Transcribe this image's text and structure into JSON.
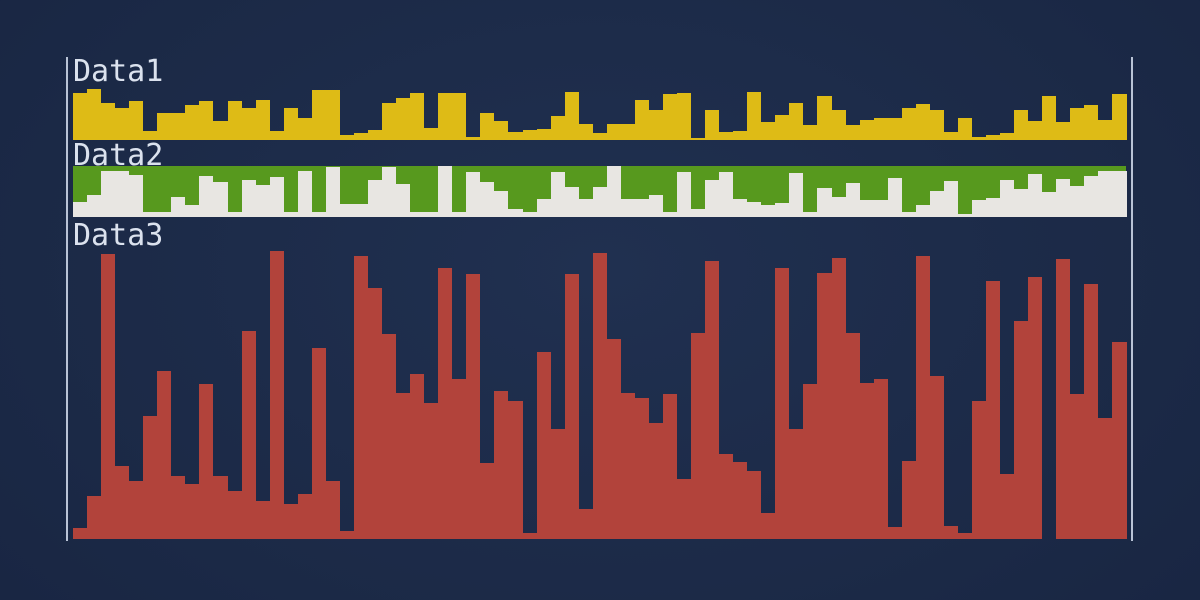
{
  "page": {
    "background_center": "#1b2946",
    "background_edge": "#0e1830",
    "axis_color": "#b9c3d6",
    "label_color": "#dbe2ee"
  },
  "chart_data": [
    {
      "type": "bar",
      "title": "Data1",
      "bar_color": "#debb16",
      "plot_background": "transparent",
      "orientation": "vertical",
      "baseline": "bottom",
      "grid": false,
      "legend": false,
      "ylim": [
        0,
        52
      ],
      "values_unit": "relative bar height in px (no numeric axis shown)",
      "values": [
        47,
        51,
        37,
        32,
        39,
        9,
        27,
        27,
        35,
        39,
        19,
        39,
        32,
        40,
        9,
        32,
        22,
        50,
        50,
        5,
        7,
        10,
        37,
        42,
        47,
        12,
        47,
        47,
        3,
        27,
        19,
        8,
        10,
        11,
        24,
        48,
        16,
        7,
        16,
        16,
        40,
        30,
        46,
        47,
        2,
        30,
        8,
        9,
        48,
        18,
        25,
        37,
        15,
        44,
        30,
        15,
        20,
        22,
        22,
        32,
        36,
        30,
        8,
        22,
        3,
        5,
        7,
        30,
        19,
        44,
        18,
        32,
        35,
        20,
        46
      ]
    },
    {
      "type": "bar",
      "title": "Data2",
      "bar_color": "#e8e6e2",
      "plot_background": "#57991e",
      "orientation": "vertical",
      "baseline": "bottom",
      "grid": false,
      "legend": false,
      "ylim": [
        0,
        51
      ],
      "values_unit": "relative bar height in px (no numeric axis shown)",
      "values": [
        15,
        22,
        46,
        46,
        42,
        5,
        5,
        20,
        12,
        41,
        35,
        5,
        37,
        32,
        40,
        5,
        46,
        5,
        50,
        13,
        13,
        37,
        50,
        33,
        5,
        5,
        51,
        5,
        45,
        35,
        26,
        8,
        5,
        18,
        45,
        30,
        18,
        30,
        51,
        18,
        18,
        22,
        5,
        45,
        8,
        37,
        45,
        18,
        15,
        12,
        14,
        44,
        5,
        29,
        20,
        34,
        17,
        17,
        39,
        5,
        12,
        26,
        36,
        3,
        17,
        19,
        37,
        28,
        43,
        25,
        38,
        31,
        41,
        46,
        46
      ]
    },
    {
      "type": "bar",
      "title": "Data3",
      "bar_color": "#b2433b",
      "plot_background": "transparent",
      "orientation": "vertical",
      "baseline": "bottom",
      "grid": false,
      "legend": false,
      "ylim": [
        0,
        289
      ],
      "values_unit": "relative bar height in px (no numeric axis shown)",
      "values": [
        11,
        43,
        285,
        73,
        58,
        123,
        168,
        63,
        55,
        155,
        63,
        48,
        208,
        38,
        288,
        35,
        45,
        191,
        58,
        8,
        283,
        251,
        205,
        146,
        165,
        136,
        271,
        160,
        265,
        76,
        148,
        138,
        6,
        187,
        110,
        265,
        30,
        286,
        200,
        146,
        141,
        116,
        145,
        60,
        206,
        278,
        85,
        77,
        68,
        26,
        271,
        110,
        155,
        266,
        281,
        206,
        156,
        160,
        12,
        78,
        283,
        163,
        13,
        6,
        138,
        258,
        65,
        218,
        262,
        0,
        280,
        145,
        255,
        121,
        197
      ]
    }
  ]
}
